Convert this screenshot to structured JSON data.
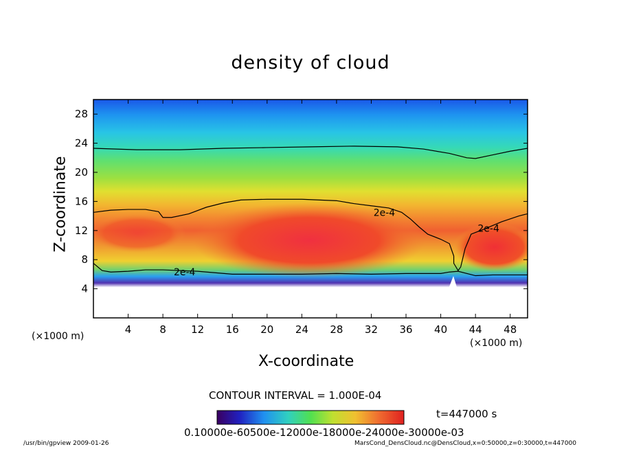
{
  "chart_data": {
    "type": "contour",
    "title": "density of cloud",
    "xlabel": "X-coordinate",
    "ylabel": "Z-coordinate",
    "x_unit": "(×1000 m)",
    "x_ticks": [
      4,
      8,
      12,
      16,
      20,
      24,
      28,
      32,
      36,
      40,
      44,
      48
    ],
    "y_ticks": [
      4,
      8,
      12,
      16,
      20,
      24,
      28
    ],
    "xlim": [
      0,
      50
    ],
    "ylim": [
      0,
      30
    ],
    "contour_interval_text": "CONTOUR INTERVAL = 1.000E-04",
    "contour_labels": [
      {
        "text": "2e-4",
        "x": 33.5,
        "y": 14.5
      },
      {
        "text": "2e-4",
        "x": 45.5,
        "y": 12.3
      },
      {
        "text": "2e-4",
        "x": 10.5,
        "y": 6.3
      }
    ],
    "upper_contour": [
      [
        0,
        23.3
      ],
      [
        5,
        23.1
      ],
      [
        10,
        23.1
      ],
      [
        15,
        23.3
      ],
      [
        20,
        23.4
      ],
      [
        25,
        23.5
      ],
      [
        30,
        23.6
      ],
      [
        35,
        23.5
      ],
      [
        38,
        23.2
      ],
      [
        41,
        22.6
      ],
      [
        43,
        22.0
      ],
      [
        44,
        21.9
      ],
      [
        46,
        22.4
      ],
      [
        48,
        22.9
      ],
      [
        50,
        23.3
      ]
    ],
    "main_contour": [
      [
        0,
        14.5
      ],
      [
        2,
        14.8
      ],
      [
        4,
        14.9
      ],
      [
        6,
        14.9
      ],
      [
        7.5,
        14.6
      ],
      [
        8,
        13.8
      ],
      [
        9,
        13.8
      ],
      [
        11,
        14.3
      ],
      [
        13,
        15.2
      ],
      [
        15,
        15.8
      ],
      [
        17,
        16.2
      ],
      [
        20,
        16.3
      ],
      [
        24,
        16.3
      ],
      [
        28,
        16.1
      ],
      [
        30,
        15.7
      ],
      [
        32,
        15.4
      ],
      [
        34,
        15.1
      ],
      [
        35.5,
        14.5
      ],
      [
        36.5,
        13.6
      ],
      [
        37.5,
        12.5
      ],
      [
        38.5,
        11.5
      ],
      [
        40,
        10.8
      ],
      [
        41,
        10.2
      ],
      [
        41.5,
        8.5
      ],
      [
        41.5,
        7.5
      ],
      [
        42,
        6.5
      ],
      [
        42.3,
        7
      ],
      [
        42.8,
        9.5
      ],
      [
        43.5,
        11.5
      ],
      [
        45,
        12.2
      ],
      [
        47,
        13.2
      ],
      [
        49,
        14
      ],
      [
        50,
        14.3
      ]
    ],
    "lower_contour": [
      [
        0,
        7.5
      ],
      [
        1,
        6.5
      ],
      [
        2,
        6.3
      ],
      [
        4,
        6.4
      ],
      [
        6,
        6.6
      ],
      [
        8,
        6.6
      ],
      [
        10,
        6.5
      ],
      [
        12,
        6.4
      ],
      [
        14,
        6.2
      ],
      [
        16,
        6.0
      ],
      [
        20,
        6.0
      ],
      [
        24,
        6.0
      ],
      [
        28,
        6.1
      ],
      [
        32,
        6.0
      ],
      [
        36,
        6.1
      ],
      [
        40,
        6.1
      ],
      [
        41,
        6.3
      ],
      [
        42,
        6.4
      ],
      [
        44,
        5.8
      ],
      [
        46,
        5.9
      ],
      [
        48,
        5.9
      ],
      [
        50,
        5.9
      ]
    ],
    "colorbar_text": "0.10000e-60500e-12000e-18000e-24000e-30000e-03",
    "time_text": "t=447000 s"
  },
  "footer": {
    "left": "/usr/bin/gpview   2009-01-26",
    "right": "MarsCond_DensCloud.nc@DensCloud,x=0:50000,z=0:30000,t=447000"
  }
}
